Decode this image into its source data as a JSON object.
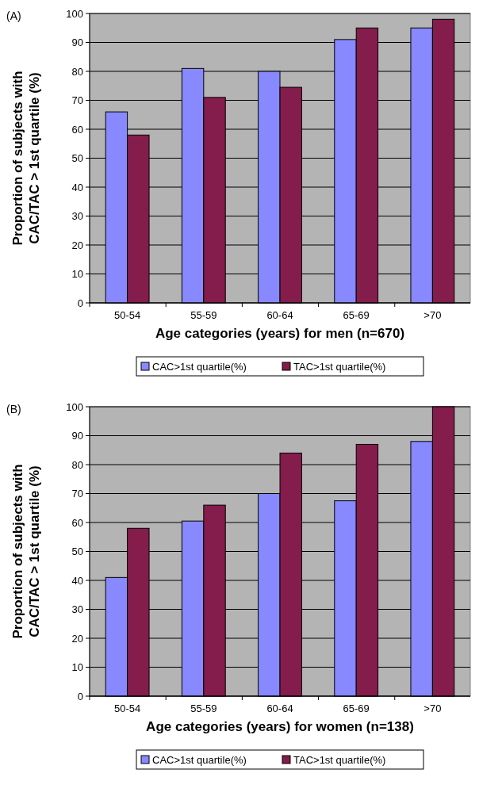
{
  "chart_data": [
    {
      "type": "bar",
      "title": "(A)",
      "xlabel": "Age categories (years) for men (n=670)",
      "ylabel": "Proportion of subjects with\nCAC/TAC > 1st quartile (%)",
      "categories": [
        "50-54",
        "55-59",
        "60-64",
        "65-69",
        ">70"
      ],
      "series": [
        {
          "name": "CAC>1st quartile(%)",
          "color": "#8888ff",
          "values": [
            66,
            81,
            80,
            91,
            95
          ]
        },
        {
          "name": "TAC>1st quartile(%)",
          "color": "#841c4c",
          "values": [
            58,
            71,
            74.5,
            95,
            98
          ]
        }
      ],
      "ylim": [
        0,
        100
      ],
      "yticks": [
        0,
        10,
        20,
        30,
        40,
        50,
        60,
        70,
        80,
        90,
        100
      ],
      "grid": "y",
      "legend": "bottom"
    },
    {
      "type": "bar",
      "title": "(B)",
      "xlabel": "Age categories (years) for women (n=138)",
      "ylabel": "Proportion of subjects with\nCAC/TAC > 1st quartile (%)",
      "categories": [
        "50-54",
        "55-59",
        "60-64",
        "65-69",
        ">70"
      ],
      "series": [
        {
          "name": "CAC>1st quartile(%)",
          "color": "#8888ff",
          "values": [
            41,
            60.5,
            70,
            67.5,
            88
          ]
        },
        {
          "name": "TAC>1st quartile(%)",
          "color": "#841c4c",
          "values": [
            58,
            66,
            84,
            87,
            100
          ]
        }
      ],
      "ylim": [
        0,
        100
      ],
      "yticks": [
        0,
        10,
        20,
        30,
        40,
        50,
        60,
        70,
        80,
        90,
        100
      ],
      "grid": "y",
      "legend": "bottom"
    }
  ]
}
